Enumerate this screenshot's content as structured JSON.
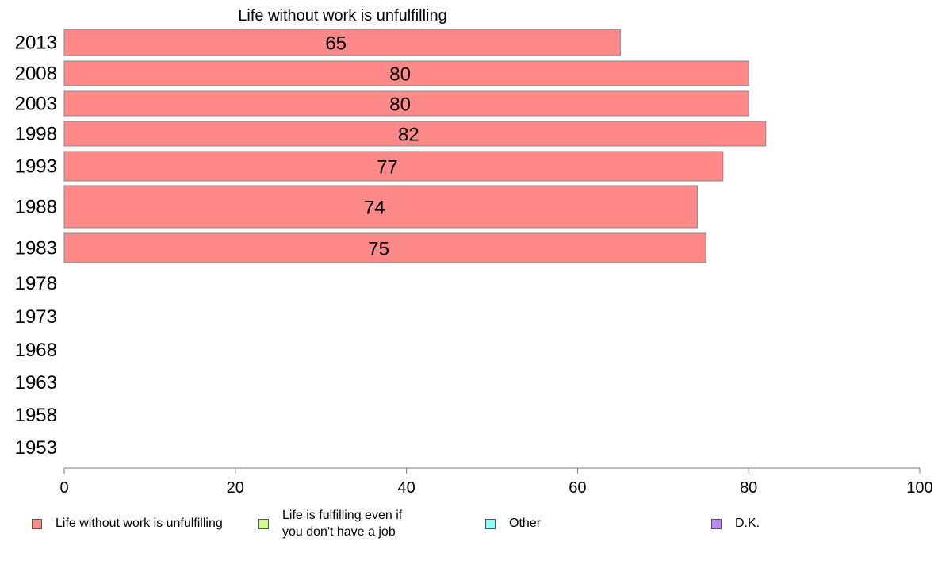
{
  "chart_data": {
    "type": "bar",
    "orientation": "horizontal",
    "title": "Life without work is unfulfilling",
    "categories": [
      "2013",
      "2008",
      "2003",
      "1998",
      "1993",
      "1988",
      "1983",
      "1978",
      "1973",
      "1968",
      "1963",
      "1958",
      "1953"
    ],
    "series": [
      {
        "name": "Life without work is unfulfilling",
        "color": "#ff8888",
        "values": [
          65,
          80,
          80,
          82,
          77,
          74,
          75,
          null,
          null,
          null,
          null,
          null,
          null
        ]
      },
      {
        "name": "Life is fulfilling even if you don't have a job",
        "color": "#ccff88",
        "values": [
          null,
          null,
          null,
          null,
          null,
          null,
          null,
          null,
          null,
          null,
          null,
          null,
          null
        ]
      },
      {
        "name": "Other",
        "color": "#88ffff",
        "values": [
          null,
          null,
          null,
          null,
          null,
          null,
          null,
          null,
          null,
          null,
          null,
          null,
          null
        ]
      },
      {
        "name": "D.K.",
        "color": "#bb88ff",
        "values": [
          null,
          null,
          null,
          null,
          null,
          null,
          null,
          null,
          null,
          null,
          null,
          null,
          null
        ]
      }
    ],
    "data_labels": [
      "65",
      "80",
      "80",
      "82",
      "77",
      "74",
      "75"
    ],
    "xlim": [
      0,
      100
    ],
    "xticks": [
      0,
      20,
      40,
      60,
      80,
      100
    ],
    "xlabel": "",
    "ylabel": "",
    "grid": false,
    "legend_position": "bottom"
  },
  "legend": {
    "items": [
      {
        "line1": "Life without work is unfulfilling",
        "line2": "",
        "color": "#ff8888"
      },
      {
        "line1": "Life is fulfilling even if",
        "line2": "you don't have a job",
        "color": "#ccff88"
      },
      {
        "line1": "Other",
        "line2": "",
        "color": "#88ffff"
      },
      {
        "line1": "D.K.",
        "line2": "",
        "color": "#bb88ff"
      }
    ]
  }
}
